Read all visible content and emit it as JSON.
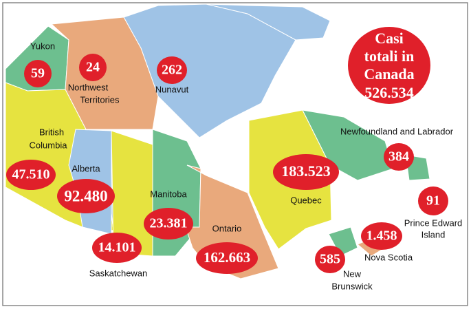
{
  "title": [
    "Casi",
    "totali in",
    "Canada"
  ],
  "total": "526.534",
  "regions": [
    {
      "name": [
        "Yukon"
      ],
      "cases": "59"
    },
    {
      "name": [
        "Northwest",
        "Territories"
      ],
      "cases": "24"
    },
    {
      "name": [
        "Nunavut"
      ],
      "cases": "262"
    },
    {
      "name": [
        "British",
        "Columbia"
      ],
      "cases": "47.510"
    },
    {
      "name": [
        "Alberta"
      ],
      "cases": "92.480"
    },
    {
      "name": [
        "Saskatchewan"
      ],
      "cases": "14.101"
    },
    {
      "name": [
        "Manitoba"
      ],
      "cases": "23.381"
    },
    {
      "name": [
        "Ontario"
      ],
      "cases": "162.663"
    },
    {
      "name": [
        "Quebec"
      ],
      "cases": "183.523"
    },
    {
      "name": [
        "Newfoundland and Labrador"
      ],
      "cases": "384"
    },
    {
      "name": [
        "Prince Edward",
        "Island"
      ],
      "cases": "91"
    },
    {
      "name": [
        "Nova Scotia"
      ],
      "cases": "1.458"
    },
    {
      "name": [
        "New",
        "Brunswick"
      ],
      "cases": "585"
    }
  ]
}
